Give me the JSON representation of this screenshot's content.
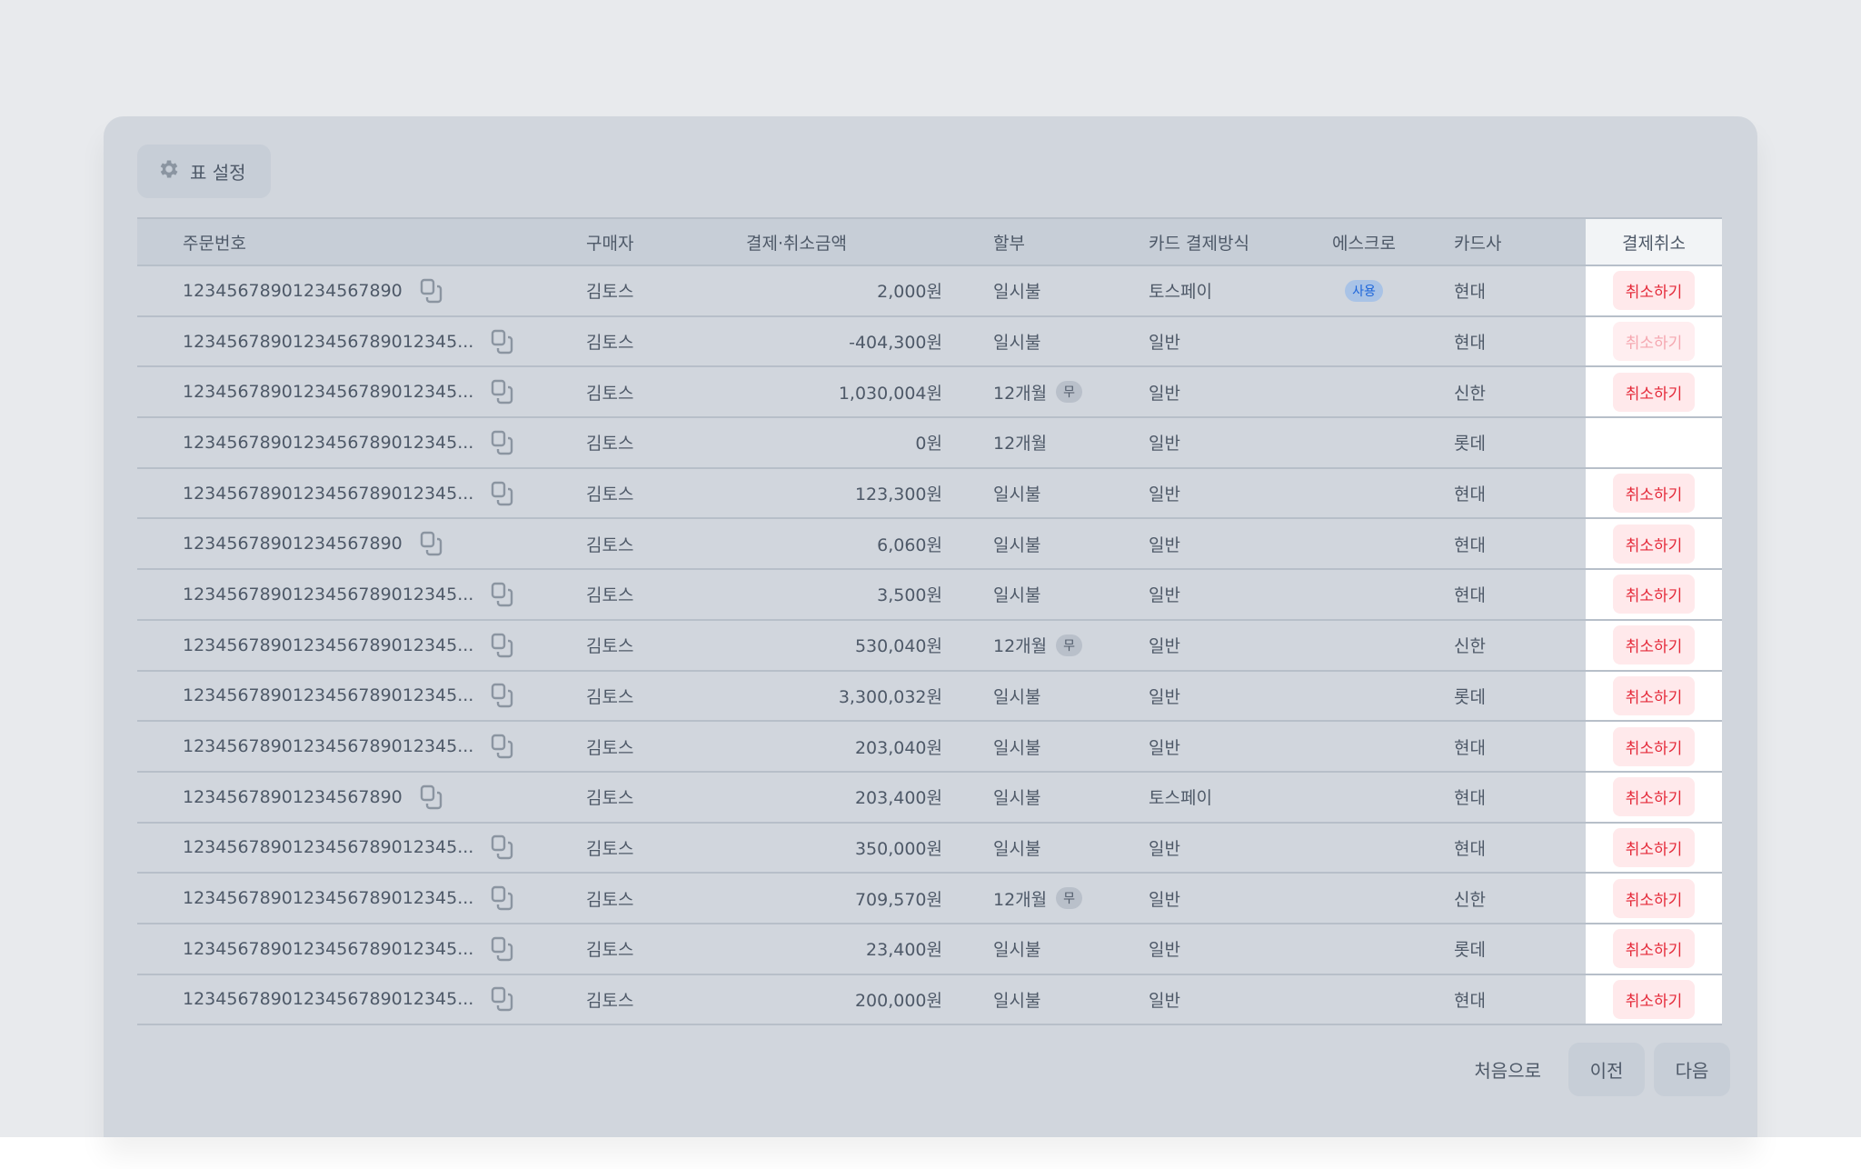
{
  "settings_label": "표 설정",
  "columns": {
    "order": "주문번호",
    "buyer": "구매자",
    "amount": "결제·취소금액",
    "installment": "할부",
    "method": "카드 결제방식",
    "escrow": "에스크로",
    "card": "카드사",
    "cancel": "결제취소"
  },
  "cancel_label": "취소하기",
  "free_badge": "무",
  "escrow_badge": "사용",
  "colors": {
    "accent_red": "#e42939",
    "escrow_blue": "#1b64da",
    "card_bg": "#d1d6dd"
  },
  "rows": [
    {
      "order": "12345678901234567890",
      "buyer": "김토스",
      "amount": "2,000원",
      "installment": "일시불",
      "free": false,
      "method": "토스페이",
      "escrow": true,
      "card": "현대",
      "cancel": "enabled"
    },
    {
      "order": "1234567890123456789012345...",
      "buyer": "김토스",
      "amount": "-404,300원",
      "installment": "일시불",
      "free": false,
      "method": "일반",
      "escrow": false,
      "card": "현대",
      "cancel": "disabled"
    },
    {
      "order": "1234567890123456789012345...",
      "buyer": "김토스",
      "amount": "1,030,004원",
      "installment": "12개월",
      "free": true,
      "method": "일반",
      "escrow": false,
      "card": "신한",
      "cancel": "enabled"
    },
    {
      "order": "1234567890123456789012345...",
      "buyer": "김토스",
      "amount": "0원",
      "installment": "12개월",
      "free": false,
      "method": "일반",
      "escrow": false,
      "card": "롯데",
      "cancel": "none"
    },
    {
      "order": "1234567890123456789012345...",
      "buyer": "김토스",
      "amount": "123,300원",
      "installment": "일시불",
      "free": false,
      "method": "일반",
      "escrow": false,
      "card": "현대",
      "cancel": "enabled"
    },
    {
      "order": "12345678901234567890",
      "buyer": "김토스",
      "amount": "6,060원",
      "installment": "일시불",
      "free": false,
      "method": "일반",
      "escrow": false,
      "card": "현대",
      "cancel": "enabled"
    },
    {
      "order": "1234567890123456789012345...",
      "buyer": "김토스",
      "amount": "3,500원",
      "installment": "일시불",
      "free": false,
      "method": "일반",
      "escrow": false,
      "card": "현대",
      "cancel": "enabled"
    },
    {
      "order": "1234567890123456789012345...",
      "buyer": "김토스",
      "amount": "530,040원",
      "installment": "12개월",
      "free": true,
      "method": "일반",
      "escrow": false,
      "card": "신한",
      "cancel": "enabled"
    },
    {
      "order": "1234567890123456789012345...",
      "buyer": "김토스",
      "amount": "3,300,032원",
      "installment": "일시불",
      "free": false,
      "method": "일반",
      "escrow": false,
      "card": "롯데",
      "cancel": "enabled"
    },
    {
      "order": "1234567890123456789012345...",
      "buyer": "김토스",
      "amount": "203,040원",
      "installment": "일시불",
      "free": false,
      "method": "일반",
      "escrow": false,
      "card": "현대",
      "cancel": "enabled"
    },
    {
      "order": "12345678901234567890",
      "buyer": "김토스",
      "amount": "203,400원",
      "installment": "일시불",
      "free": false,
      "method": "토스페이",
      "escrow": false,
      "card": "현대",
      "cancel": "enabled"
    },
    {
      "order": "1234567890123456789012345...",
      "buyer": "김토스",
      "amount": "350,000원",
      "installment": "일시불",
      "free": false,
      "method": "일반",
      "escrow": false,
      "card": "현대",
      "cancel": "enabled"
    },
    {
      "order": "1234567890123456789012345...",
      "buyer": "김토스",
      "amount": "709,570원",
      "installment": "12개월",
      "free": true,
      "method": "일반",
      "escrow": false,
      "card": "신한",
      "cancel": "enabled"
    },
    {
      "order": "1234567890123456789012345...",
      "buyer": "김토스",
      "amount": "23,400원",
      "installment": "일시불",
      "free": false,
      "method": "일반",
      "escrow": false,
      "card": "롯데",
      "cancel": "enabled"
    },
    {
      "order": "1234567890123456789012345...",
      "buyer": "김토스",
      "amount": "200,000원",
      "installment": "일시불",
      "free": false,
      "method": "일반",
      "escrow": false,
      "card": "현대",
      "cancel": "enabled"
    }
  ],
  "pagination": {
    "first": "처음으로",
    "prev": "이전",
    "next": "다음"
  }
}
